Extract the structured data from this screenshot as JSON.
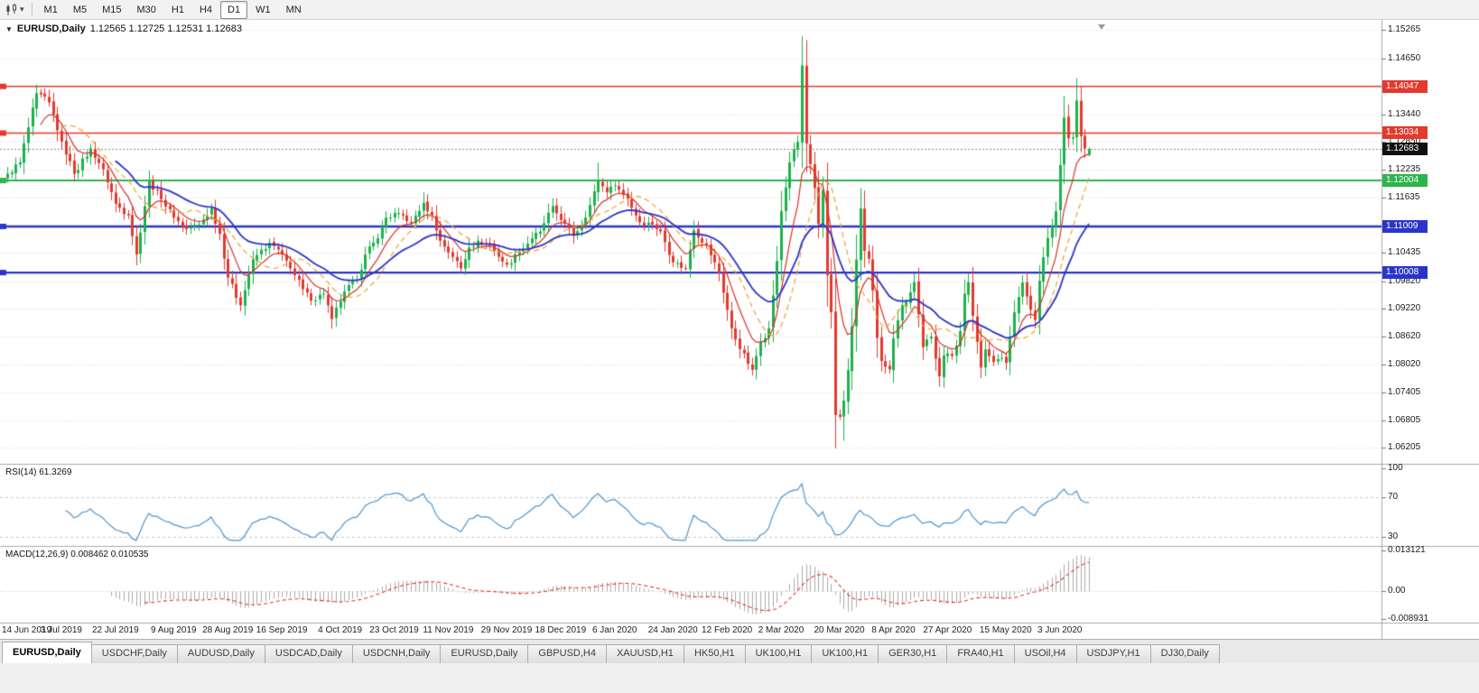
{
  "toolbar": {
    "timeframes": [
      "M1",
      "M5",
      "M15",
      "M30",
      "H1",
      "H4",
      "D1",
      "W1",
      "MN"
    ],
    "active_timeframe": "D1"
  },
  "chart": {
    "title_symbol": "EURUSD,Daily",
    "title_ohlc": "1.12565 1.12725 1.12531 1.12683"
  },
  "chart_data": {
    "type": "candlestick",
    "symbol": "EURUSD",
    "period": "Daily",
    "n_candles": 261,
    "y_range": [
      1.0588,
      1.1549
    ],
    "y_ticks": [
      "1.15265",
      "1.14650",
      "1.13440",
      "1.12850",
      "1.12235",
      "1.11635",
      "1.10435",
      "1.09820",
      "1.09220",
      "1.08620",
      "1.08020",
      "1.07405",
      "1.06805",
      "1.06205"
    ],
    "x_labels": [
      "14 Jun 2019",
      "3 Jul 2019",
      "22 Jul 2019",
      "9 Aug 2019",
      "28 Aug 2019",
      "16 Sep 2019",
      "4 Oct 2019",
      "23 Oct 2019",
      "11 Nov 2019",
      "29 Nov 2019",
      "18 Dec 2019",
      "6 Jan 2020",
      "24 Jan 2020",
      "12 Feb 2020",
      "2 Mar 2020",
      "20 Mar 2020",
      "8 Apr 2020",
      "27 Apr 2020",
      "15 May 2020",
      "3 Jun 2020"
    ],
    "x_label_indices": [
      0,
      13,
      26,
      40,
      53,
      66,
      80,
      93,
      106,
      120,
      133,
      146,
      160,
      173,
      186,
      200,
      213,
      226,
      240,
      253
    ],
    "up_color": "#1cb24b",
    "down_color": "#e23a2e",
    "price_anchors": [
      [
        0,
        1.1215
      ],
      [
        3,
        1.124
      ],
      [
        7,
        1.139
      ],
      [
        10,
        1.137
      ],
      [
        13,
        1.1285
      ],
      [
        16,
        1.1215
      ],
      [
        20,
        1.127
      ],
      [
        23,
        1.1225
      ],
      [
        26,
        1.115
      ],
      [
        29,
        1.1125
      ],
      [
        31,
        1.104
      ],
      [
        34,
        1.12
      ],
      [
        37,
        1.116
      ],
      [
        40,
        1.112
      ],
      [
        43,
        1.1095
      ],
      [
        46,
        1.1105
      ],
      [
        49,
        1.114
      ],
      [
        51,
        1.1085
      ],
      [
        53,
        1.099
      ],
      [
        56,
        1.093
      ],
      [
        59,
        1.103
      ],
      [
        63,
        1.1065
      ],
      [
        66,
        1.104
      ],
      [
        68,
        1.101
      ],
      [
        71,
        1.0965
      ],
      [
        73,
        1.094
      ],
      [
        76,
        1.0955
      ],
      [
        78,
        1.09
      ],
      [
        81,
        1.096
      ],
      [
        84,
        1.0985
      ],
      [
        86,
        1.104
      ],
      [
        89,
        1.1075
      ],
      [
        91,
        1.112
      ],
      [
        94,
        1.113
      ],
      [
        97,
        1.111
      ],
      [
        100,
        1.1152
      ],
      [
        102,
        1.1125
      ],
      [
        104,
        1.107
      ],
      [
        107,
        1.1035
      ],
      [
        109,
        1.101
      ],
      [
        111,
        1.1055
      ],
      [
        113,
        1.107
      ],
      [
        116,
        1.106
      ],
      [
        118,
        1.1035
      ],
      [
        120,
        1.1018
      ],
      [
        123,
        1.1045
      ],
      [
        126,
        1.1075
      ],
      [
        128,
        1.109
      ],
      [
        131,
        1.1145
      ],
      [
        133,
        1.1115
      ],
      [
        136,
        1.108
      ],
      [
        139,
        1.112
      ],
      [
        142,
        1.12
      ],
      [
        144,
        1.1175
      ],
      [
        146,
        1.119
      ],
      [
        149,
        1.116
      ],
      [
        152,
        1.111
      ],
      [
        155,
        1.1105
      ],
      [
        157,
        1.109
      ],
      [
        160,
        1.1023
      ],
      [
        163,
        1.101
      ],
      [
        165,
        1.1093
      ],
      [
        168,
        1.106
      ],
      [
        171,
        1.1
      ],
      [
        174,
        1.088
      ],
      [
        176,
        1.0835
      ],
      [
        179,
        1.079
      ],
      [
        181,
        1.085
      ],
      [
        183,
        1.088
      ],
      [
        185,
        1.1026
      ],
      [
        186,
        1.1134
      ],
      [
        188,
        1.124
      ],
      [
        190,
        1.1284
      ],
      [
        191,
        1.145
      ],
      [
        192,
        1.1281
      ],
      [
        194,
        1.1184
      ],
      [
        195,
        1.1106
      ],
      [
        196,
        1.118
      ],
      [
        197,
        1.0995
      ],
      [
        198,
        1.0915
      ],
      [
        199,
        1.0692
      ],
      [
        200,
        1.0688
      ],
      [
        201,
        1.0723
      ],
      [
        202,
        1.0789
      ],
      [
        203,
        1.0884
      ],
      [
        204,
        1.1029
      ],
      [
        205,
        1.114
      ],
      [
        206,
        1.1048
      ],
      [
        207,
        1.1031
      ],
      [
        208,
        1.0962
      ],
      [
        209,
        1.0859
      ],
      [
        210,
        1.0809
      ],
      [
        212,
        1.0791
      ],
      [
        213,
        1.0858
      ],
      [
        215,
        1.093
      ],
      [
        216,
        1.0936
      ],
      [
        218,
        1.098
      ],
      [
        219,
        1.091
      ],
      [
        220,
        1.0839
      ],
      [
        222,
        1.0862
      ],
      [
        224,
        1.0776
      ],
      [
        225,
        1.0821
      ],
      [
        227,
        1.082
      ],
      [
        229,
        1.0874
      ],
      [
        230,
        1.0955
      ],
      [
        231,
        1.098
      ],
      [
        232,
        1.0907
      ],
      [
        234,
        1.0795
      ],
      [
        235,
        1.0834
      ],
      [
        237,
        1.0807
      ],
      [
        239,
        1.0816
      ],
      [
        240,
        1.0805
      ],
      [
        242,
        1.0915
      ],
      [
        244,
        1.0979
      ],
      [
        245,
        1.0949
      ],
      [
        247,
        1.0898
      ],
      [
        248,
        1.0983
      ],
      [
        250,
        1.1076
      ],
      [
        251,
        1.1101
      ],
      [
        252,
        1.1134
      ],
      [
        253,
        1.1234
      ],
      [
        254,
        1.1337
      ],
      [
        255,
        1.1292
      ],
      [
        256,
        1.1294
      ],
      [
        257,
        1.1374
      ],
      [
        258,
        1.1297
      ],
      [
        259,
        1.127
      ],
      [
        260,
        1.12683
      ]
    ],
    "extremes": [
      [
        7,
        "h",
        1.1403
      ],
      [
        31,
        "l",
        1.1027
      ],
      [
        56,
        "l",
        1.0926
      ],
      [
        78,
        "l",
        1.0879
      ],
      [
        100,
        "h",
        1.1175
      ],
      [
        142,
        "h",
        1.1239
      ],
      [
        179,
        "l",
        1.0778
      ],
      [
        191,
        "h",
        1.1495
      ],
      [
        199,
        "l",
        1.066
      ],
      [
        201,
        "l",
        1.0636
      ],
      [
        254,
        "h",
        1.1384
      ],
      [
        257,
        "h",
        1.1422
      ]
    ],
    "last_candle": {
      "o": 1.12565,
      "h": 1.12725,
      "l": 1.12531,
      "c": 1.12683
    },
    "hlines": [
      {
        "price": 1.14047,
        "label": "1.14047",
        "color": "#e23a2e",
        "width": 1.4
      },
      {
        "price": 1.13034,
        "label": "1.13034",
        "color": "#e23a2e",
        "width": 1.4
      },
      {
        "price": 1.12004,
        "label": "1.12004",
        "color": "#2eb44d",
        "width": 2
      },
      {
        "price": 1.11009,
        "label": "1.11009",
        "color": "#2b35c8",
        "width": 2.4
      },
      {
        "price": 1.10008,
        "label": "1.10008",
        "color": "#2b35c8",
        "width": 2.4
      }
    ],
    "current_price": {
      "value": 1.12683,
      "label": "1.12683",
      "color": "#111111"
    },
    "moving_averages": [
      {
        "type": "ema",
        "period": 8,
        "color": "#d93025",
        "dash": [],
        "width": 1.2
      },
      {
        "type": "sma",
        "period": 13,
        "color": "#f0a030",
        "dash": [
          6,
          4
        ],
        "width": 1.2
      },
      {
        "type": "ema",
        "period": 26,
        "color": "#2b35c8",
        "dash": [],
        "width": 1.8
      }
    ],
    "indicators": {
      "rsi": {
        "label": "RSI(14) 61.3269",
        "period": 14,
        "current": "61.3269",
        "ticks": [
          "100",
          "70",
          "30"
        ],
        "levels": [
          70,
          30
        ],
        "range": [
          24,
          100
        ],
        "color": "#4f94cd"
      },
      "macd": {
        "label": "MACD(12,26,9) 0.008462 0.010535",
        "fast": 12,
        "slow": 26,
        "signal_period": 9,
        "values": "0.008462 0.010535",
        "ticks": [
          "0.013121",
          "0.00",
          "-0.008931"
        ],
        "range": [
          -0.0095,
          0.0138
        ],
        "hist_color": "#ababab",
        "signal_color": "#e23a2e"
      }
    }
  },
  "bottom_tabs": {
    "tabs": [
      "EURUSD,Daily",
      "USDCHF,Daily",
      "AUDUSD,Daily",
      "USDCAD,Daily",
      "USDCNH,Daily",
      "EURUSD,Daily",
      "GBPUSD,H4",
      "XAUUSD,H1",
      "HK50,H1",
      "UK100,H1",
      "UK100,H1",
      "GER30,H1",
      "FRA40,H1",
      "USOil,H4",
      "USDJPY,H1",
      "DJ30,Daily"
    ],
    "active_index": 0
  }
}
